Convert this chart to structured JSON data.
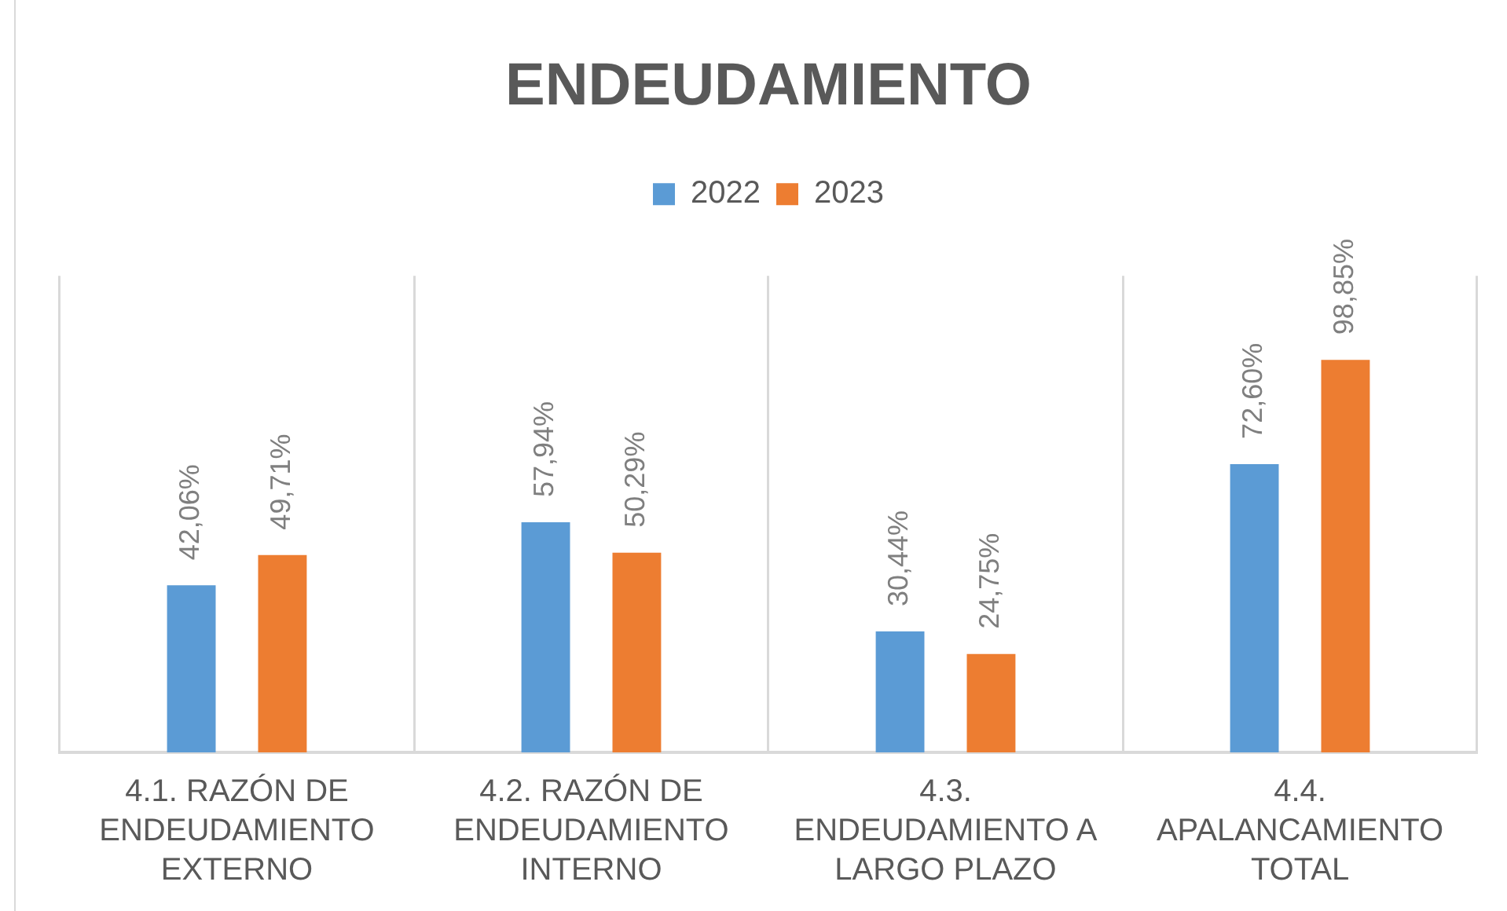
{
  "chart_data": {
    "type": "bar",
    "title": "ENDEUDAMIENTO",
    "categories": [
      "4.1. RAZÓN DE ENDEUDAMIENTO EXTERNO",
      "4.2. RAZÓN DE ENDEUDAMIENTO INTERNO",
      "4.3. ENDEUDAMIENTO A LARGO PLAZO",
      "4.4. APALANCAMIENTO TOTAL"
    ],
    "series": [
      {
        "name": "2022",
        "color": "#5b9bd5",
        "values": [
          42.06,
          57.94,
          30.44,
          72.6
        ],
        "value_labels": [
          "42,06%",
          "57,94%",
          "30,44%",
          "72,60%"
        ]
      },
      {
        "name": "2023",
        "color": "#ed7d31",
        "values": [
          49.71,
          50.29,
          24.75,
          98.85
        ],
        "value_labels": [
          "49,71%",
          "50,29%",
          "24,75%",
          "98,85%"
        ]
      }
    ],
    "grid": "x",
    "legend": "top",
    "tick_labels": "x"
  }
}
